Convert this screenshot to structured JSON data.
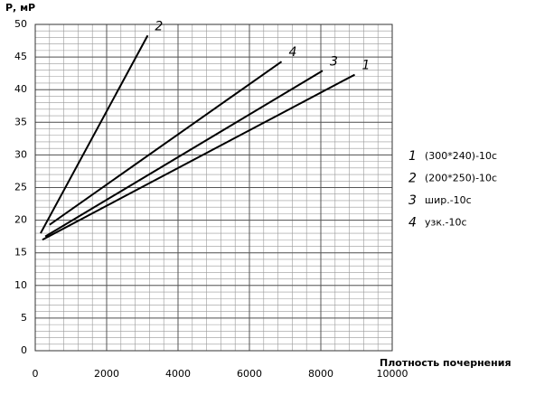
{
  "chart_data": {
    "type": "line",
    "y_label": "Р, мР",
    "x_label": "Плотность почернения",
    "xlim": [
      0,
      10000
    ],
    "xticks": [
      0,
      2000,
      4000,
      6000,
      8000,
      10000
    ],
    "ylim": [
      0,
      50
    ],
    "yticks": [
      0,
      5,
      10,
      15,
      20,
      25,
      30,
      35,
      40,
      45,
      50
    ],
    "grid": true,
    "x_grid_step": 400,
    "y_grid_step": 1,
    "series": [
      {
        "label": "1",
        "name": "(300*240)-10с",
        "color": "#000000",
        "x": [
          200,
          8950
        ],
        "values": [
          17,
          42.3
        ]
      },
      {
        "label": "2",
        "name": "(200*250)-10с",
        "color": "#000000",
        "x": [
          150,
          3150
        ],
        "values": [
          18,
          48.3
        ]
      },
      {
        "label": "3",
        "name": "шир.-10с",
        "color": "#000000",
        "x": [
          280,
          8050
        ],
        "values": [
          17.5,
          42.9
        ]
      },
      {
        "label": "4",
        "name": "узк.-10с",
        "color": "#000000",
        "x": [
          400,
          6900
        ],
        "values": [
          19.3,
          44.3
        ]
      }
    ]
  }
}
